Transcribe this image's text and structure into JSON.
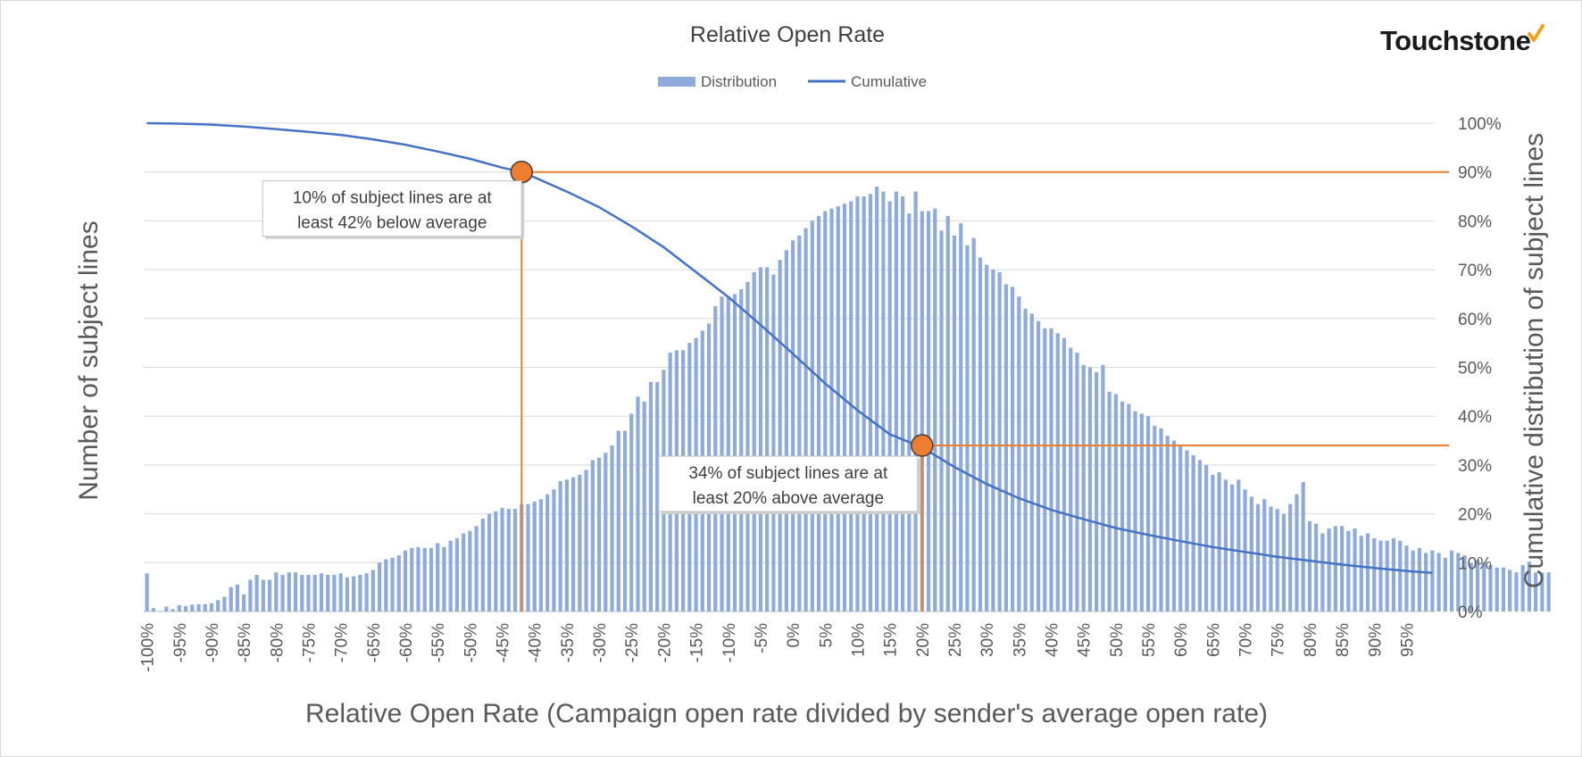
{
  "chart_data": {
    "type": "bar",
    "title": "Relative Open Rate",
    "xlabel": "Relative Open Rate (Campaign open rate divided by sender's average open rate)",
    "ylabel": "Number of subject lines",
    "y2label": "Cumulative distribution of subject lines",
    "xlim": [
      -100,
      99
    ],
    "x_ticks": [
      "-100%",
      "-95%",
      "-90%",
      "-85%",
      "-80%",
      "-75%",
      "-70%",
      "-65%",
      "-60%",
      "-55%",
      "-50%",
      "-45%",
      "-40%",
      "-35%",
      "-30%",
      "-25%",
      "-20%",
      "-15%",
      "-10%",
      "-5%",
      "0%",
      "5%",
      "10%",
      "15%",
      "20%",
      "25%",
      "30%",
      "35%",
      "40%",
      "45%",
      "50%",
      "55%",
      "60%",
      "65%",
      "70%",
      "75%",
      "80%",
      "85%",
      "90%",
      "95%"
    ],
    "y2_ticks": [
      "0%",
      "10%",
      "20%",
      "30%",
      "40%",
      "50%",
      "60%",
      "70%",
      "80%",
      "90%",
      "100%"
    ],
    "y2lim": [
      0,
      100
    ],
    "legend_position": "top-center",
    "grid": true,
    "series": [
      {
        "name": "Distribution",
        "kind": "bar",
        "color": "#8faadc",
        "x_start": -100,
        "x_step": 1,
        "values": [
          7.8,
          0.7,
          0.1,
          1,
          0.5,
          1.3,
          1.1,
          1.4,
          1.5,
          1.5,
          1.7,
          2.3,
          3,
          5,
          5.5,
          3.5,
          6.5,
          7.5,
          6.5,
          6.5,
          8,
          7.5,
          8,
          8,
          7.5,
          7.5,
          7.5,
          7.8,
          7.5,
          7.5,
          7.8,
          7,
          7.2,
          7.5,
          7.8,
          8.5,
          10,
          10.7,
          11,
          11.5,
          12.5,
          13,
          13.2,
          13,
          13,
          14,
          13.2,
          14.5,
          15,
          16,
          16.5,
          17.5,
          19,
          20,
          20.5,
          21.2,
          21,
          21,
          22,
          22,
          22.5,
          23,
          24,
          25,
          26.7,
          27,
          27.5,
          28,
          29,
          31,
          31.5,
          32.5,
          34,
          37,
          37,
          40.5,
          44,
          43,
          47,
          47,
          49.5,
          53,
          53.5,
          53.5,
          55,
          56,
          57.5,
          59,
          62.5,
          64.5,
          64.5,
          65,
          66,
          67.5,
          69.5,
          70.5,
          70.5,
          69,
          72,
          74,
          76,
          77,
          78.5,
          80,
          81,
          82,
          82.5,
          83,
          83.5,
          84,
          85,
          85,
          85.5,
          87,
          86,
          84,
          86,
          85,
          81.5,
          86,
          82,
          82,
          82.5,
          78,
          81,
          77,
          79.5,
          75,
          76.5,
          72.5,
          71,
          70,
          69.5,
          67,
          66.5,
          64.5,
          62,
          61,
          59.5,
          58,
          58,
          57,
          56,
          54,
          53,
          50.5,
          50,
          49,
          50.5,
          45,
          44.5,
          43,
          42.5,
          41,
          40.5,
          40,
          38,
          37.5,
          36,
          35,
          34,
          33,
          32,
          31,
          30,
          28,
          28.5,
          27,
          26,
          27,
          25,
          23.5,
          22,
          23,
          21.5,
          21,
          20,
          22,
          24,
          26.5,
          18.5,
          18,
          16,
          17,
          17.5,
          17.5,
          16.5,
          17,
          15.5,
          16,
          15,
          14.5,
          14.5,
          15,
          14.5,
          13.5,
          12.5,
          13,
          12,
          12.5,
          12,
          11,
          12.5,
          12,
          11.5,
          10,
          10.5,
          10,
          9.5,
          9,
          9,
          8.5,
          8,
          9.5,
          10.2,
          8,
          8,
          8
        ]
      },
      {
        "name": "Cumulative",
        "kind": "line",
        "color": "#4472c4",
        "axis": "secondary",
        "x": [
          -100,
          -95,
          -90,
          -85,
          -80,
          -75,
          -70,
          -65,
          -60,
          -55,
          -50,
          -45,
          -42,
          -40,
          -35,
          -30,
          -25,
          -20,
          -15,
          -10,
          -5,
          0,
          5,
          10,
          15,
          20,
          25,
          30,
          35,
          40,
          45,
          50,
          55,
          60,
          65,
          70,
          75,
          80,
          85,
          90,
          95,
          99
        ],
        "y": [
          100,
          99.9,
          99.7,
          99.3,
          98.8,
          98.2,
          97.6,
          96.7,
          95.6,
          94.2,
          92.7,
          90.9,
          90,
          88.9,
          86,
          82.8,
          78.9,
          74.6,
          69.5,
          64.4,
          58.7,
          52.8,
          46.7,
          41.2,
          36.3,
          33.6,
          29.6,
          26.1,
          23.2,
          20.8,
          18.9,
          17.1,
          15.7,
          14.4,
          13.2,
          12.2,
          11.2,
          10.4,
          9.6,
          8.9,
          8.3,
          7.9
        ]
      }
    ],
    "annotations": [
      {
        "x": -42,
        "y2": 90,
        "text_lines": [
          "10% of subject lines are at",
          "least 42% below average"
        ]
      },
      {
        "x": 20,
        "y2": 34,
        "text_lines": [
          "34% of subject lines are at",
          "least 20% above average"
        ]
      }
    ],
    "annotation_color": "#ed7d31"
  },
  "logo": {
    "text": "Touchstone",
    "check_color": "#f0a21c"
  }
}
